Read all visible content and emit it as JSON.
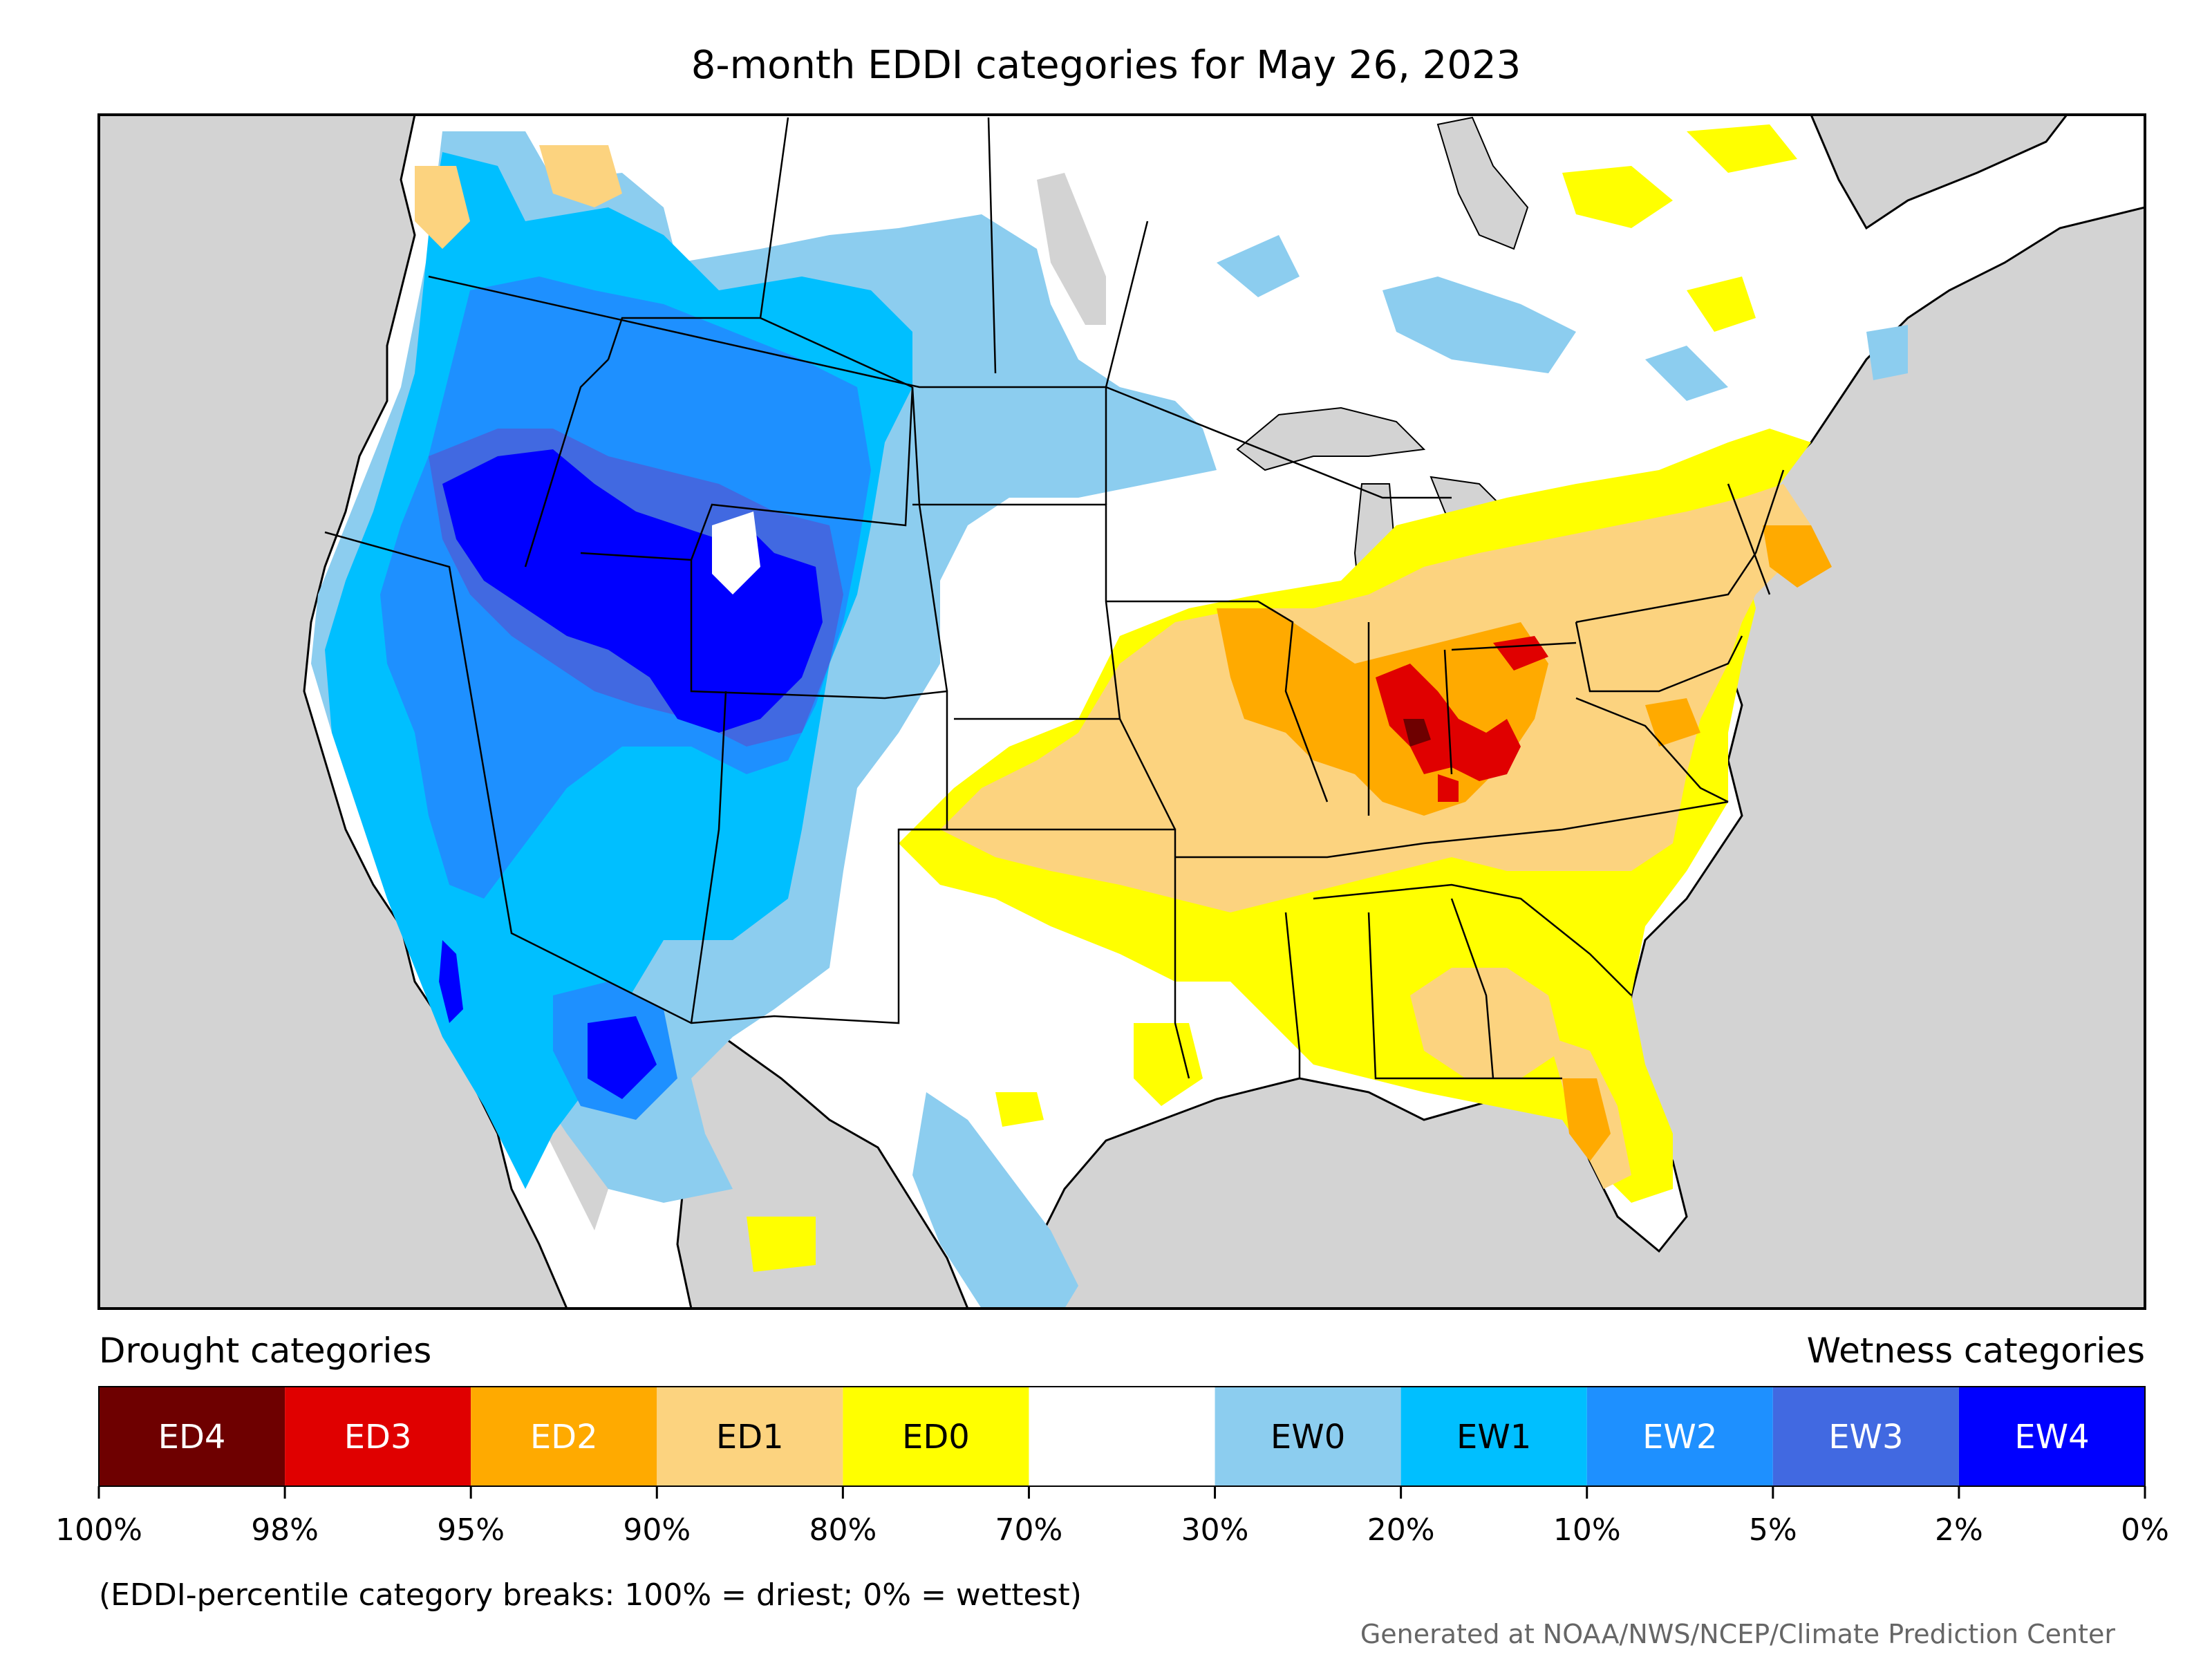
{
  "title": "8-month EDDI categories for May 26, 2023",
  "drought_heading": "Drought categories",
  "wetness_heading": "Wetness categories",
  "legend": {
    "categories": [
      {
        "label": "ED4",
        "color": "#6e0000",
        "text_color": "#ffffff"
      },
      {
        "label": "ED3",
        "color": "#e00000",
        "text_color": "#ffffff"
      },
      {
        "label": "ED2",
        "color": "#ffaa00",
        "text_color": "#ffffff"
      },
      {
        "label": "ED1",
        "color": "#fcd37f",
        "text_color": "#000000"
      },
      {
        "label": "ED0",
        "color": "#ffff00",
        "text_color": "#000000"
      },
      {
        "label": "",
        "color": "#ffffff",
        "text_color": "#000000"
      },
      {
        "label": "EW0",
        "color": "#8ccdef",
        "text_color": "#000000"
      },
      {
        "label": "EW1",
        "color": "#00bfff",
        "text_color": "#000000"
      },
      {
        "label": "EW2",
        "color": "#1e90ff",
        "text_color": "#ffffff"
      },
      {
        "label": "EW3",
        "color": "#4169e1",
        "text_color": "#ffffff"
      },
      {
        "label": "EW4",
        "color": "#0000ff",
        "text_color": "#ffffff"
      }
    ],
    "ticks": [
      "100%",
      "98%",
      "95%",
      "90%",
      "80%",
      "70%",
      "30%",
      "20%",
      "10%",
      "5%",
      "2%",
      "0%"
    ]
  },
  "note": "(EDDI-percentile category breaks: 100% = driest; 0% = wettest)",
  "credit": "Generated at NOAA/NWS/NCEP/Climate Prediction Center",
  "map_colors": {
    "land": "#ffffff",
    "ocean": "#d3d3d3",
    "border": "#000000"
  }
}
